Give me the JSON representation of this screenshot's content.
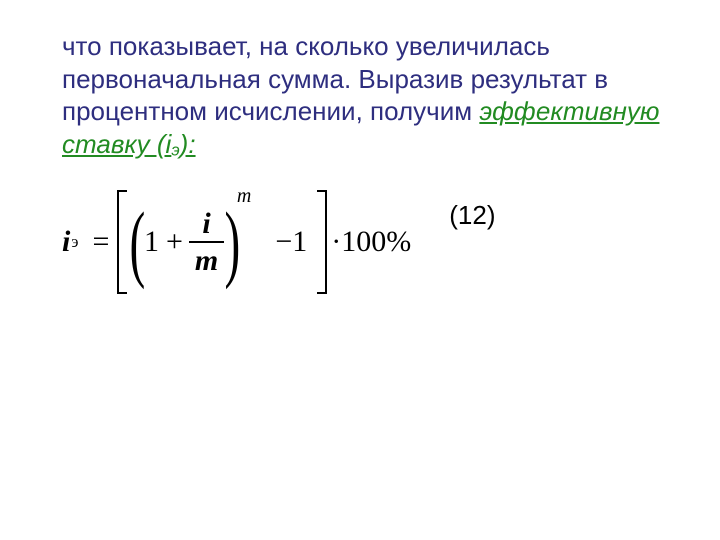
{
  "colors": {
    "body_text": "#2e2e7f",
    "term_text": "#228b22",
    "formula_text": "#000000",
    "background": "#ffffff"
  },
  "typography": {
    "body_font": "Arial",
    "body_size_pt": 20,
    "formula_font": "Times New Roman",
    "formula_size_pt": 22
  },
  "text": {
    "line1": "что показывает, на сколько увеличилась первоначальная сумма. Выразив результат в процентном исчислении, получим ",
    "term_prefix": "эффективную ставку (i",
    "term_sub": "э",
    "term_suffix": "):"
  },
  "formula": {
    "lhs_var": "i",
    "lhs_sub": "э",
    "equals": "=",
    "one": "1",
    "plus": "+",
    "frac_num": "i",
    "frac_den": "m",
    "exponent": "m",
    "minus_one": "−1",
    "times_100": "·100%"
  },
  "equation_number": "(12)"
}
